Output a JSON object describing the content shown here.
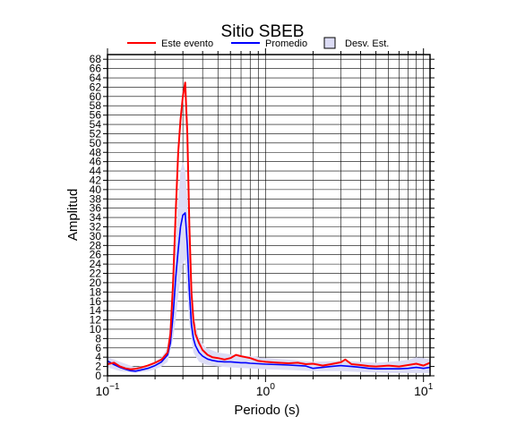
{
  "chart_data": {
    "type": "line",
    "title": "Sitio SBEB",
    "xlabel": "Periodo (s)",
    "ylabel": "Amplitud",
    "x_scale": "log",
    "xlim": [
      0.1,
      11
    ],
    "ylim": [
      0,
      69
    ],
    "grid": true,
    "legend_position": "top",
    "x_tick_labels": [
      {
        "value": 0.1,
        "base": "10",
        "exp": "−1"
      },
      {
        "value": 1,
        "base": "10",
        "exp": "0"
      },
      {
        "value": 10,
        "base": "10",
        "exp": "1"
      }
    ],
    "y_ticks": [
      0,
      2,
      4,
      6,
      8,
      10,
      12,
      14,
      16,
      18,
      20,
      22,
      24,
      26,
      28,
      30,
      32,
      34,
      36,
      38,
      40,
      42,
      44,
      46,
      48,
      50,
      52,
      54,
      56,
      58,
      60,
      62,
      64,
      66,
      68
    ],
    "series": [
      {
        "name": "Este evento",
        "color": "#ff0000",
        "x": [
          0.1,
          0.11,
          0.12,
          0.13,
          0.14,
          0.15,
          0.16,
          0.18,
          0.2,
          0.22,
          0.24,
          0.25,
          0.26,
          0.27,
          0.28,
          0.29,
          0.3,
          0.31,
          0.32,
          0.33,
          0.34,
          0.35,
          0.36,
          0.38,
          0.4,
          0.43,
          0.46,
          0.5,
          0.55,
          0.6,
          0.65,
          0.7,
          0.75,
          0.8,
          0.9,
          1.0,
          1.2,
          1.4,
          1.6,
          1.8,
          2.0,
          2.3,
          2.6,
          3.0,
          3.2,
          3.5,
          4.0,
          4.5,
          5.0,
          6.0,
          7.0,
          8.0,
          9.0,
          10.0,
          11.0
        ],
        "y": [
          2.5,
          2.8,
          2.0,
          1.6,
          1.4,
          1.5,
          1.7,
          2.2,
          2.8,
          3.5,
          5.0,
          9.0,
          20.0,
          35.0,
          48.0,
          55.0,
          60.0,
          63.0,
          52.0,
          32.0,
          18.0,
          12.0,
          9.0,
          7.0,
          5.5,
          4.5,
          4.0,
          3.8,
          3.5,
          3.8,
          4.5,
          4.2,
          4.0,
          3.8,
          3.2,
          3.0,
          2.8,
          2.7,
          2.8,
          2.5,
          2.6,
          2.2,
          2.5,
          2.9,
          3.5,
          2.5,
          2.3,
          2.1,
          2.0,
          2.2,
          2.0,
          2.3,
          2.6,
          2.2,
          2.8
        ]
      },
      {
        "name": "Promedio",
        "color": "#0000ff",
        "x": [
          0.1,
          0.11,
          0.12,
          0.13,
          0.14,
          0.15,
          0.16,
          0.18,
          0.2,
          0.22,
          0.24,
          0.25,
          0.26,
          0.27,
          0.28,
          0.29,
          0.3,
          0.31,
          0.32,
          0.33,
          0.34,
          0.35,
          0.36,
          0.38,
          0.4,
          0.43,
          0.46,
          0.5,
          0.55,
          0.6,
          0.65,
          0.7,
          0.75,
          0.8,
          0.9,
          1.0,
          1.2,
          1.4,
          1.6,
          1.8,
          2.0,
          2.3,
          2.6,
          3.0,
          3.5,
          4.0,
          4.5,
          5.0,
          6.0,
          7.0,
          8.0,
          9.0,
          10.0,
          11.0
        ],
        "y": [
          3.2,
          2.4,
          1.8,
          1.4,
          1.1,
          1.0,
          1.2,
          1.6,
          2.2,
          3.0,
          4.5,
          7.0,
          13.0,
          21.0,
          27.0,
          32.0,
          34.5,
          35.0,
          28.0,
          18.0,
          11.0,
          8.0,
          6.5,
          5.0,
          4.2,
          3.6,
          3.3,
          3.1,
          3.0,
          3.0,
          2.9,
          2.8,
          2.8,
          2.7,
          2.6,
          2.5,
          2.4,
          2.3,
          2.2,
          2.1,
          1.6,
          1.8,
          2.0,
          2.2,
          2.0,
          1.8,
          1.6,
          1.5,
          1.5,
          1.5,
          1.6,
          1.8,
          1.6,
          1.8
        ]
      }
    ],
    "band": {
      "name": "Desv. Est.",
      "fill": "#dcdcf5",
      "x": [
        0.1,
        0.12,
        0.15,
        0.18,
        0.2,
        0.22,
        0.24,
        0.26,
        0.27,
        0.28,
        0.29,
        0.3,
        0.31,
        0.32,
        0.33,
        0.35,
        0.38,
        0.42,
        0.5,
        0.6,
        0.8,
        1.0,
        1.5,
        2.0,
        3.0,
        4.0,
        5.0,
        6.0,
        7.0,
        8.0,
        9.0,
        10.0,
        11.0
      ],
      "upper": [
        4.0,
        3.0,
        1.8,
        2.3,
        3.0,
        4.0,
        6.0,
        17.0,
        28.0,
        38.0,
        44.0,
        46.0,
        44.0,
        38.0,
        26.0,
        13.0,
        8.0,
        6.0,
        5.0,
        4.6,
        4.2,
        3.8,
        3.4,
        3.0,
        3.2,
        3.0,
        2.8,
        3.0,
        3.2,
        3.4,
        4.0,
        3.8,
        3.5
      ],
      "lower": [
        1.8,
        1.0,
        0.6,
        1.0,
        1.4,
        2.0,
        3.0,
        8.0,
        12.0,
        17.0,
        21.0,
        24.0,
        25.0,
        18.0,
        11.0,
        5.0,
        3.0,
        2.4,
        2.0,
        1.8,
        1.6,
        1.4,
        1.2,
        1.0,
        1.0,
        0.8,
        0.7,
        0.6,
        0.6,
        0.6,
        0.6,
        0.6,
        0.6
      ]
    }
  }
}
